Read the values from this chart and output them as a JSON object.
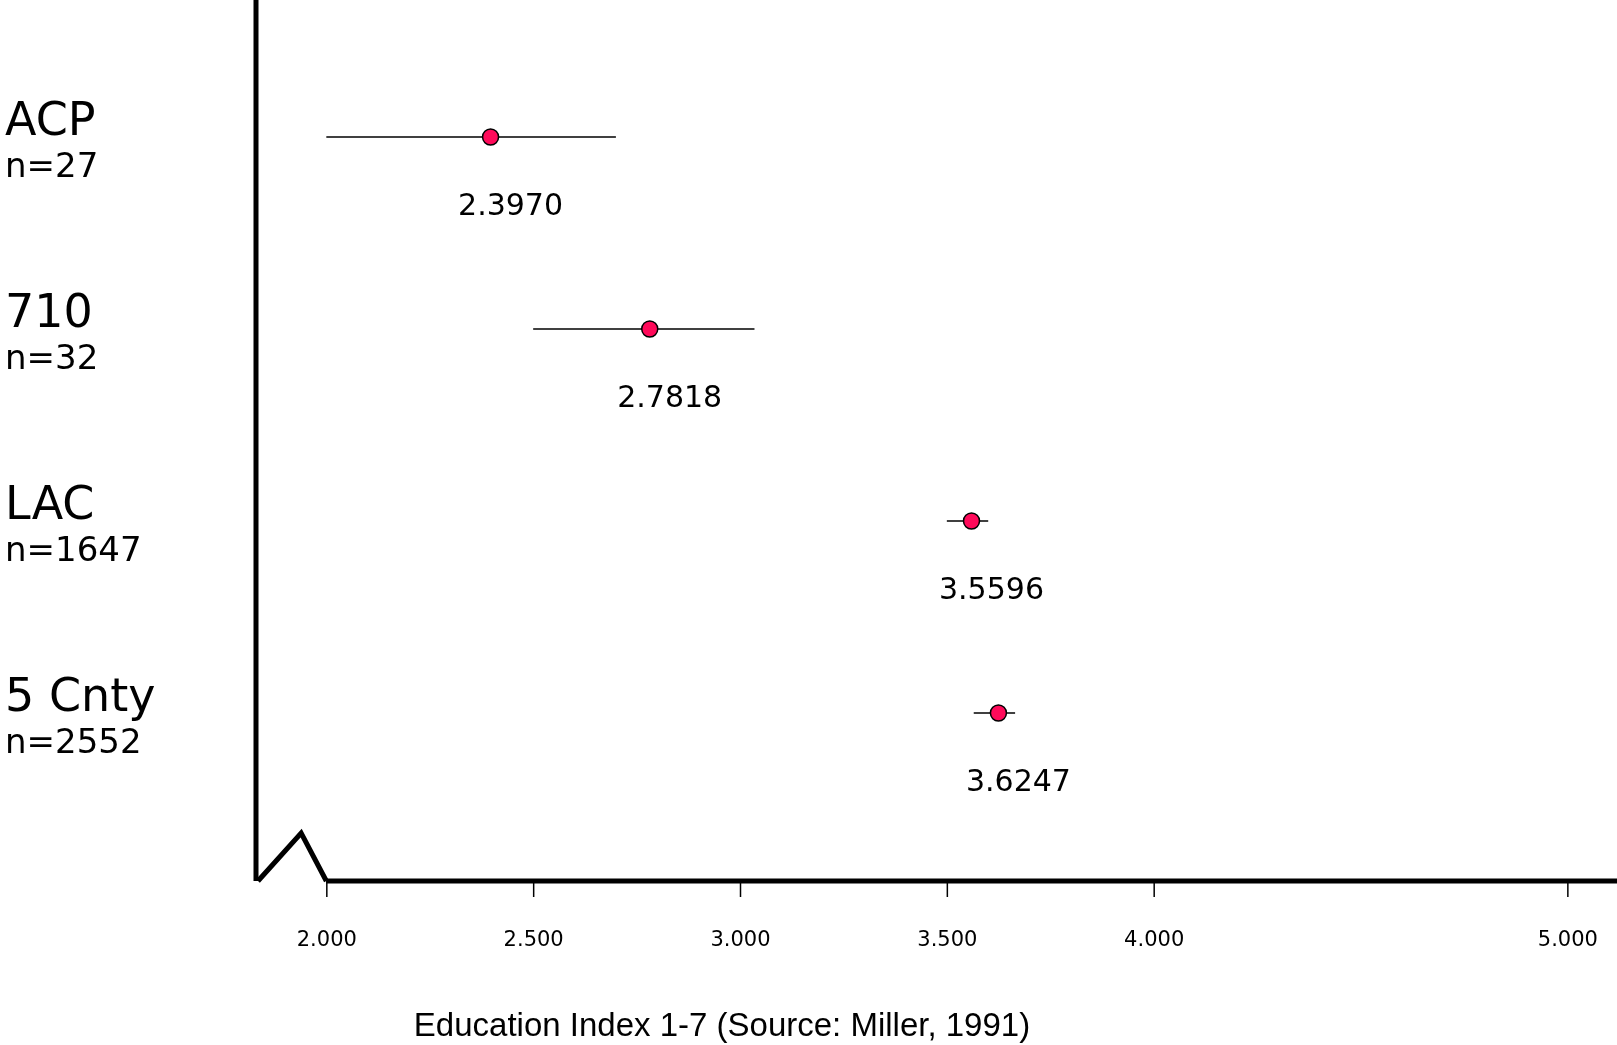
{
  "chart_data": {
    "type": "scatter",
    "orientation": "horizontal",
    "xlabel": "Education Index 1-7 (Source: Miller, 1991)",
    "categories": [
      "ACP\nn=27",
      "710\nn=32",
      "LAC\nn=1647",
      "5 Cnty\nn=2552"
    ],
    "values": [
      2.397,
      2.7818,
      3.5596,
      3.6247
    ],
    "value_labels": [
      "2.3970",
      "2.7818",
      "3.5596",
      "3.6247"
    ],
    "errors": [
      [
        2.0,
        2.7
      ],
      [
        2.5,
        3.035
      ],
      [
        3.5,
        3.6
      ],
      [
        3.565,
        3.665
      ]
    ],
    "color": "#ff0a5a",
    "marker": "circle",
    "grid": false,
    "legend": false,
    "xlim": [
      1.83,
      5.12
    ],
    "xticks": [
      {
        "value": 2,
        "label": "2.000"
      },
      {
        "value": 2.5,
        "label": "2.500"
      },
      {
        "value": 3,
        "label": "3.000"
      },
      {
        "value": 3.5,
        "label": "3.500"
      },
      {
        "value": 4,
        "label": "4.000"
      },
      {
        "value": 5,
        "label": "5.000"
      }
    ]
  }
}
